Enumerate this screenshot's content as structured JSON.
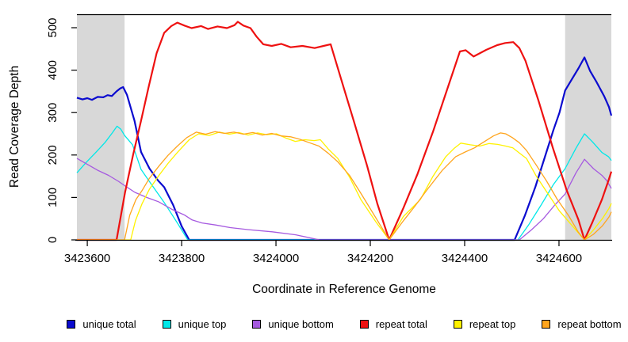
{
  "chart_data": {
    "type": "line",
    "title": "",
    "xlabel": "Coordinate in Reference Genome",
    "ylabel": "Read Coverage Depth",
    "xlim": [
      3423578,
      3424711
    ],
    "ylim": [
      0,
      532
    ],
    "x_ticks": [
      3423600,
      3423800,
      3424000,
      3424200,
      3424400,
      3424600
    ],
    "y_ticks": [
      0,
      100,
      200,
      300,
      400,
      500
    ],
    "grid": false,
    "legend_position": "bottom",
    "background_color": "#ffffff",
    "shaded_region_color": "#d8d8d8",
    "shaded_regions": [
      {
        "x_start": 3423578,
        "x_end": 3423679
      },
      {
        "x_start": 3424613,
        "x_end": 3424711
      }
    ],
    "series": [
      {
        "name": "unique total",
        "color": "#0b0bcf",
        "line_width": 2.2,
        "points": [
          [
            3423578,
            335
          ],
          [
            3423590,
            331
          ],
          [
            3423600,
            334
          ],
          [
            3423610,
            330
          ],
          [
            3423622,
            337
          ],
          [
            3423634,
            336
          ],
          [
            3423643,
            341
          ],
          [
            3423652,
            339
          ],
          [
            3423662,
            350
          ],
          [
            3423670,
            357
          ],
          [
            3423676,
            360
          ],
          [
            3423684,
            342
          ],
          [
            3423700,
            281
          ],
          [
            3423714,
            207
          ],
          [
            3423732,
            168
          ],
          [
            3423750,
            140
          ],
          [
            3423763,
            124
          ],
          [
            3423782,
            82
          ],
          [
            3423800,
            32
          ],
          [
            3423816,
            0
          ],
          [
            3424506,
            0
          ],
          [
            3424528,
            58
          ],
          [
            3424550,
            125
          ],
          [
            3424570,
            195
          ],
          [
            3424588,
            258
          ],
          [
            3424601,
            300
          ],
          [
            3424613,
            352
          ],
          [
            3424627,
            378
          ],
          [
            3424641,
            404
          ],
          [
            3424654,
            430
          ],
          [
            3424666,
            398
          ],
          [
            3424680,
            371
          ],
          [
            3424696,
            338
          ],
          [
            3424706,
            313
          ],
          [
            3424711,
            293
          ]
        ]
      },
      {
        "name": "unique top",
        "color": "#00e8e8",
        "line_width": 1.3,
        "points": [
          [
            3423578,
            158
          ],
          [
            3423598,
            183
          ],
          [
            3423618,
            206
          ],
          [
            3423638,
            230
          ],
          [
            3423653,
            252
          ],
          [
            3423663,
            268
          ],
          [
            3423671,
            261
          ],
          [
            3423679,
            246
          ],
          [
            3423696,
            224
          ],
          [
            3423714,
            166
          ],
          [
            3423734,
            134
          ],
          [
            3423763,
            88
          ],
          [
            3423792,
            38
          ],
          [
            3423813,
            0
          ],
          [
            3424513,
            0
          ],
          [
            3424536,
            36
          ],
          [
            3424562,
            82
          ],
          [
            3424588,
            130
          ],
          [
            3424613,
            168
          ],
          [
            3424636,
            216
          ],
          [
            3424654,
            250
          ],
          [
            3424671,
            231
          ],
          [
            3424691,
            206
          ],
          [
            3424705,
            196
          ],
          [
            3424711,
            187
          ]
        ]
      },
      {
        "name": "unique bottom",
        "color": "#a65ae0",
        "line_width": 1.3,
        "points": [
          [
            3423578,
            192
          ],
          [
            3423600,
            178
          ],
          [
            3423622,
            164
          ],
          [
            3423645,
            152
          ],
          [
            3423666,
            138
          ],
          [
            3423679,
            128
          ],
          [
            3423701,
            112
          ],
          [
            3423726,
            100
          ],
          [
            3423751,
            90
          ],
          [
            3423781,
            71
          ],
          [
            3423807,
            58
          ],
          [
            3423822,
            47
          ],
          [
            3423843,
            40
          ],
          [
            3423872,
            35
          ],
          [
            3423903,
            29
          ],
          [
            3423942,
            24
          ],
          [
            3423992,
            19
          ],
          [
            3424042,
            12
          ],
          [
            3424092,
            0
          ],
          [
            3424516,
            0
          ],
          [
            3424542,
            24
          ],
          [
            3424567,
            50
          ],
          [
            3424591,
            82
          ],
          [
            3424613,
            108
          ],
          [
            3424636,
            158
          ],
          [
            3424654,
            190
          ],
          [
            3424673,
            168
          ],
          [
            3424691,
            152
          ],
          [
            3424701,
            140
          ],
          [
            3424711,
            121
          ]
        ]
      },
      {
        "name": "repeat total",
        "color": "#ee1111",
        "line_width": 2.2,
        "points": [
          [
            3423578,
            0
          ],
          [
            3423662,
            0
          ],
          [
            3423680,
            112
          ],
          [
            3423697,
            200
          ],
          [
            3423714,
            281
          ],
          [
            3423730,
            360
          ],
          [
            3423747,
            440
          ],
          [
            3423763,
            488
          ],
          [
            3423778,
            504
          ],
          [
            3423791,
            512
          ],
          [
            3423806,
            505
          ],
          [
            3423821,
            499
          ],
          [
            3423841,
            504
          ],
          [
            3423856,
            497
          ],
          [
            3423876,
            503
          ],
          [
            3423896,
            499
          ],
          [
            3423912,
            506
          ],
          [
            3423919,
            514
          ],
          [
            3423931,
            505
          ],
          [
            3423946,
            499
          ],
          [
            3423959,
            479
          ],
          [
            3423973,
            461
          ],
          [
            3423991,
            457
          ],
          [
            3424011,
            462
          ],
          [
            3424031,
            454
          ],
          [
            3424056,
            457
          ],
          [
            3424082,
            452
          ],
          [
            3424101,
            457
          ],
          [
            3424116,
            461
          ],
          [
            3424140,
            372
          ],
          [
            3424165,
            280
          ],
          [
            3424193,
            175
          ],
          [
            3424215,
            85
          ],
          [
            3424240,
            0
          ],
          [
            3424270,
            75
          ],
          [
            3424300,
            155
          ],
          [
            3424333,
            255
          ],
          [
            3424360,
            345
          ],
          [
            3424390,
            444
          ],
          [
            3424402,
            447
          ],
          [
            3424419,
            432
          ],
          [
            3424446,
            448
          ],
          [
            3424469,
            459
          ],
          [
            3424486,
            464
          ],
          [
            3424503,
            466
          ],
          [
            3424516,
            452
          ],
          [
            3424529,
            422
          ],
          [
            3424556,
            330
          ],
          [
            3424587,
            217
          ],
          [
            3424616,
            118
          ],
          [
            3424641,
            48
          ],
          [
            3424654,
            0
          ],
          [
            3424671,
            42
          ],
          [
            3424691,
            95
          ],
          [
            3424705,
            140
          ],
          [
            3424711,
            161
          ]
        ]
      },
      {
        "name": "repeat top",
        "color": "#fff200",
        "line_width": 1.3,
        "points": [
          [
            3423578,
            0
          ],
          [
            3423692,
            0
          ],
          [
            3423702,
            45
          ],
          [
            3423716,
            85
          ],
          [
            3423732,
            120
          ],
          [
            3423752,
            152
          ],
          [
            3423771,
            180
          ],
          [
            3423791,
            206
          ],
          [
            3423816,
            236
          ],
          [
            3423836,
            250
          ],
          [
            3423858,
            246
          ],
          [
            3423880,
            254
          ],
          [
            3423901,
            249
          ],
          [
            3423921,
            253
          ],
          [
            3423941,
            247
          ],
          [
            3423961,
            252
          ],
          [
            3423981,
            248
          ],
          [
            3424001,
            250
          ],
          [
            3424021,
            240
          ],
          [
            3424041,
            232
          ],
          [
            3424061,
            236
          ],
          [
            3424081,
            234
          ],
          [
            3424094,
            236
          ],
          [
            3424111,
            214
          ],
          [
            3424131,
            192
          ],
          [
            3424156,
            148
          ],
          [
            3424180,
            95
          ],
          [
            3424212,
            42
          ],
          [
            3424240,
            0
          ],
          [
            3424270,
            55
          ],
          [
            3424306,
            95
          ],
          [
            3424333,
            150
          ],
          [
            3424360,
            196
          ],
          [
            3424377,
            215
          ],
          [
            3424392,
            228
          ],
          [
            3424412,
            224
          ],
          [
            3424432,
            221
          ],
          [
            3424452,
            227
          ],
          [
            3424470,
            225
          ],
          [
            3424487,
            221
          ],
          [
            3424502,
            217
          ],
          [
            3424517,
            204
          ],
          [
            3424531,
            192
          ],
          [
            3424552,
            150
          ],
          [
            3424577,
            108
          ],
          [
            3424601,
            68
          ],
          [
            3424626,
            36
          ],
          [
            3424646,
            10
          ],
          [
            3424654,
            0
          ],
          [
            3424672,
            22
          ],
          [
            3424692,
            50
          ],
          [
            3424706,
            74
          ],
          [
            3424711,
            86
          ]
        ]
      },
      {
        "name": "repeat bottom",
        "color": "#ffa51e",
        "line_width": 1.3,
        "points": [
          [
            3423578,
            0
          ],
          [
            3423679,
            0
          ],
          [
            3423690,
            58
          ],
          [
            3423703,
            95
          ],
          [
            3423716,
            116
          ],
          [
            3423731,
            144
          ],
          [
            3423752,
            174
          ],
          [
            3423771,
            199
          ],
          [
            3423791,
            221
          ],
          [
            3423811,
            241
          ],
          [
            3423831,
            254
          ],
          [
            3423851,
            249
          ],
          [
            3423871,
            255
          ],
          [
            3423891,
            251
          ],
          [
            3423911,
            254
          ],
          [
            3423931,
            249
          ],
          [
            3423951,
            253
          ],
          [
            3423971,
            247
          ],
          [
            3423991,
            251
          ],
          [
            3424011,
            245
          ],
          [
            3424031,
            243
          ],
          [
            3424051,
            237
          ],
          [
            3424071,
            229
          ],
          [
            3424091,
            221
          ],
          [
            3424111,
            204
          ],
          [
            3424131,
            184
          ],
          [
            3424156,
            152
          ],
          [
            3424181,
            108
          ],
          [
            3424214,
            48
          ],
          [
            3424240,
            0
          ],
          [
            3424268,
            42
          ],
          [
            3424295,
            80
          ],
          [
            3424323,
            122
          ],
          [
            3424352,
            163
          ],
          [
            3424381,
            196
          ],
          [
            3424401,
            207
          ],
          [
            3424421,
            217
          ],
          [
            3424441,
            231
          ],
          [
            3424461,
            245
          ],
          [
            3424476,
            252
          ],
          [
            3424487,
            250
          ],
          [
            3424501,
            241
          ],
          [
            3424516,
            229
          ],
          [
            3424531,
            211
          ],
          [
            3424552,
            176
          ],
          [
            3424574,
            138
          ],
          [
            3424596,
            96
          ],
          [
            3424621,
            56
          ],
          [
            3424641,
            18
          ],
          [
            3424654,
            0
          ],
          [
            3424673,
            13
          ],
          [
            3424692,
            33
          ],
          [
            3424706,
            54
          ],
          [
            3424711,
            66
          ]
        ]
      }
    ]
  }
}
